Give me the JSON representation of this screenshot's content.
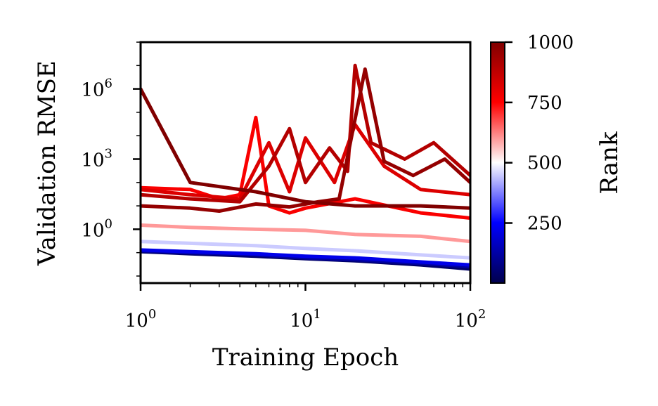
{
  "chart_data": {
    "type": "line",
    "xlabel": "Training Epoch",
    "ylabel": "Validation RMSE",
    "x_scale": "log",
    "y_scale": "log",
    "xlim": [
      1,
      100
    ],
    "ylim": [
      0.005,
      100000000
    ],
    "x_ticks": [
      {
        "base": "10",
        "exp": "0",
        "value": 1
      },
      {
        "base": "10",
        "exp": "1",
        "value": 10
      },
      {
        "base": "10",
        "exp": "2",
        "value": 100
      }
    ],
    "y_ticks": [
      {
        "base": "10",
        "exp": "0",
        "value": 1
      },
      {
        "base": "10",
        "exp": "3",
        "value": 1000
      },
      {
        "base": "10",
        "exp": "6",
        "value": 1000000
      }
    ],
    "grid": false,
    "colorbar": {
      "label": "Rank",
      "min": 1,
      "max": 1000,
      "ticks": [
        "250",
        "500",
        "750",
        "1000"
      ],
      "tick_values": [
        250,
        500,
        750,
        1000
      ],
      "colormap": [
        "#00004c",
        "#0000ff",
        "#ffffff",
        "#ff0000",
        "#800000"
      ]
    },
    "series_note_values": {
      "low_rank_final_rmse": 0.02,
      "high_rank_typical_rmse": 3,
      "highest_peak_rmse": 10000000,
      "highest_peak_epoch": 20,
      "start_outlier_rmse": 1000000
    },
    "series": [
      {
        "rank": 40,
        "x": [
          1,
          2,
          5,
          10,
          20,
          50,
          100
        ],
        "y": [
          0.11,
          0.09,
          0.07,
          0.055,
          0.045,
          0.03,
          0.02
        ]
      },
      {
        "rank": 120,
        "x": [
          1,
          2,
          5,
          10,
          20,
          50,
          100
        ],
        "y": [
          0.12,
          0.1,
          0.08,
          0.06,
          0.05,
          0.035,
          0.025
        ]
      },
      {
        "rank": 220,
        "x": [
          1,
          2,
          5,
          10,
          20,
          50,
          100
        ],
        "y": [
          0.13,
          0.11,
          0.09,
          0.07,
          0.06,
          0.04,
          0.03
        ]
      },
      {
        "rank": 450,
        "x": [
          1,
          2,
          5,
          10,
          20,
          50,
          100
        ],
        "y": [
          0.3,
          0.25,
          0.2,
          0.15,
          0.12,
          0.08,
          0.06
        ]
      },
      {
        "rank": 600,
        "x": [
          1,
          2,
          5,
          10,
          20,
          50,
          100
        ],
        "y": [
          1.5,
          1.2,
          1.0,
          0.9,
          0.6,
          0.5,
          0.3
        ]
      },
      {
        "rank": 760,
        "x": [
          1,
          2,
          3,
          4,
          5,
          6,
          8,
          10,
          20,
          50,
          100
        ],
        "y": [
          60,
          50,
          20,
          30,
          60000,
          10,
          5,
          8,
          20,
          5,
          3
        ]
      },
      {
        "rank": 820,
        "x": [
          1,
          2,
          4,
          6,
          8,
          10,
          15,
          20,
          30,
          50,
          100
        ],
        "y": [
          50,
          30,
          20,
          5000,
          40,
          8000,
          100,
          30000,
          500,
          50,
          30
        ]
      },
      {
        "rank": 900,
        "x": [
          1,
          2,
          4,
          6,
          8,
          10,
          14,
          18,
          20,
          25,
          40,
          60,
          100
        ],
        "y": [
          30,
          20,
          15,
          500,
          20000,
          100,
          3000,
          300,
          10000000,
          5000,
          1000,
          5000,
          200
        ]
      },
      {
        "rank": 960,
        "x": [
          1,
          2,
          3,
          5,
          8,
          12,
          16,
          23,
          30,
          45,
          70,
          100
        ],
        "y": [
          10,
          8,
          6,
          12,
          9,
          15,
          20,
          7000000,
          800,
          200,
          1000,
          100
        ]
      },
      {
        "rank": 1000,
        "x": [
          1,
          2,
          5,
          10,
          20,
          50,
          100
        ],
        "y": [
          1000000,
          100,
          40,
          15,
          10,
          10,
          8
        ]
      }
    ]
  }
}
